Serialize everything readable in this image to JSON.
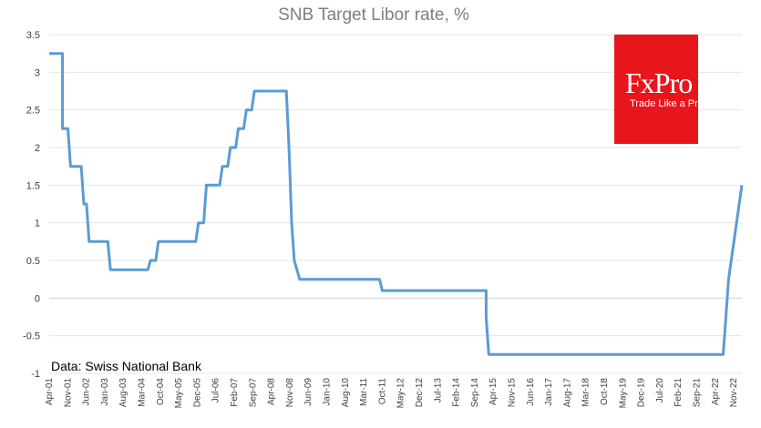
{
  "logo": {
    "brand": "FxPro",
    "tagline": "Trade Like a Pro",
    "color": "#e8161c"
  },
  "source_note": "Data: Swiss National Bank",
  "chart_data": {
    "type": "line",
    "title": "SNB Target Libor rate, %",
    "xlabel": "",
    "ylabel": "",
    "ylim": [
      -1,
      3.5
    ],
    "y_ticks": [
      3.5,
      3,
      2.5,
      2,
      1.5,
      1,
      0.5,
      0,
      -0.5,
      -1
    ],
    "x_range": [
      "2001-04",
      "2022-12"
    ],
    "x_tick_labels": [
      "Apr-01",
      "Nov-01",
      "Jun-02",
      "Jan-03",
      "Aug-03",
      "Mar-04",
      "Oct-04",
      "May-05",
      "Dec-05",
      "Jul-06",
      "Feb-07",
      "Sep-07",
      "Apr-08",
      "Nov-08",
      "Jun-09",
      "Jan-10",
      "Aug-10",
      "Mar-11",
      "Oct-11",
      "May-12",
      "Dec-12",
      "Jul-13",
      "Feb-14",
      "Sep-14",
      "Apr-15",
      "Nov-15",
      "Jun-16",
      "Jan-17",
      "Aug-17",
      "Mar-18",
      "Oct-18",
      "May-19",
      "Dec-19",
      "Jul-20",
      "Feb-21",
      "Sep-21",
      "Apr-22",
      "Nov-22"
    ],
    "grid": true,
    "line_color": "#5b9bd5",
    "series": [
      {
        "values": [
          [
            "2001-04",
            3.25
          ],
          [
            "2001-09",
            3.25
          ],
          [
            "2001-09",
            2.25
          ],
          [
            "2001-11",
            2.25
          ],
          [
            "2001-12",
            1.75
          ],
          [
            "2002-04",
            1.75
          ],
          [
            "2002-05",
            1.25
          ],
          [
            "2002-06",
            1.25
          ],
          [
            "2002-07",
            0.75
          ],
          [
            "2003-02",
            0.75
          ],
          [
            "2003-03",
            0.375
          ],
          [
            "2004-05",
            0.375
          ],
          [
            "2004-06",
            0.5
          ],
          [
            "2004-08",
            0.5
          ],
          [
            "2004-09",
            0.75
          ],
          [
            "2005-11",
            0.75
          ],
          [
            "2005-12",
            1.0
          ],
          [
            "2006-02",
            1.0
          ],
          [
            "2006-03",
            1.5
          ],
          [
            "2006-05",
            1.5
          ],
          [
            "2006-06",
            1.5
          ],
          [
            "2006-08",
            1.5
          ],
          [
            "2006-09",
            1.75
          ],
          [
            "2006-11",
            1.75
          ],
          [
            "2006-12",
            2.0
          ],
          [
            "2007-02",
            2.0
          ],
          [
            "2007-03",
            2.25
          ],
          [
            "2007-05",
            2.25
          ],
          [
            "2007-06",
            2.5
          ],
          [
            "2007-08",
            2.5
          ],
          [
            "2007-09",
            2.75
          ],
          [
            "2008-09",
            2.75
          ],
          [
            "2008-10",
            2.0
          ],
          [
            "2008-11",
            1.0
          ],
          [
            "2008-12",
            0.5
          ],
          [
            "2009-02",
            0.25
          ],
          [
            "2011-08",
            0.25
          ],
          [
            "2011-09",
            0.1
          ],
          [
            "2014-12",
            0.1
          ],
          [
            "2014-12",
            -0.25
          ],
          [
            "2015-01",
            -0.75
          ],
          [
            "2022-05",
            -0.75
          ],
          [
            "2022-06",
            -0.25
          ],
          [
            "2022-07",
            0.25
          ],
          [
            "2022-10",
            1.0
          ],
          [
            "2022-12",
            1.5
          ]
        ]
      }
    ]
  }
}
